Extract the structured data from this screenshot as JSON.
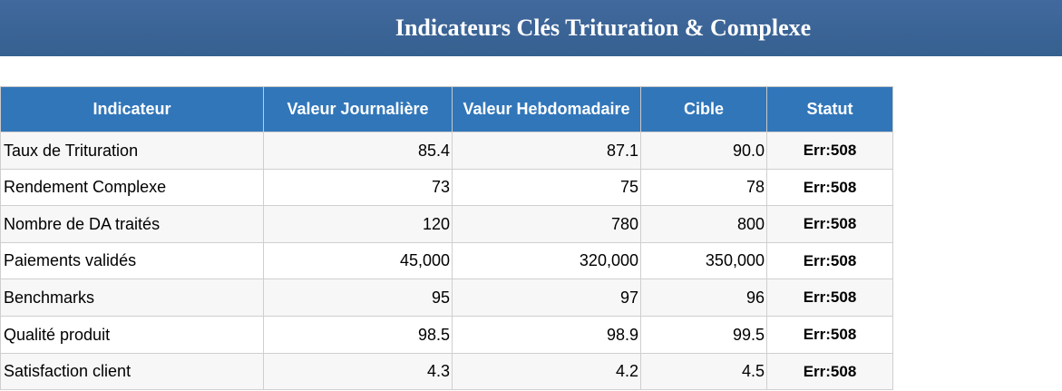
{
  "header": {
    "title": "Indicateurs Clés Trituration & Complexe"
  },
  "table": {
    "columns": [
      "Indicateur",
      "Valeur Journalière",
      "Valeur Hebdomadaire",
      "Cible",
      "Statut"
    ],
    "rows": [
      [
        "Taux de Trituration",
        "85.4",
        "87.1",
        "90.0",
        "Err:508"
      ],
      [
        "Rendement Complexe",
        "73",
        "75",
        "78",
        "Err:508"
      ],
      [
        "Nombre de DA traités",
        "120",
        "780",
        "800",
        "Err:508"
      ],
      [
        "Paiements validés",
        "45,000",
        "320,000",
        "350,000",
        "Err:508"
      ],
      [
        "Benchmarks",
        "95",
        "97",
        "96",
        "Err:508"
      ],
      [
        "Qualité produit",
        "98.5",
        "98.9",
        "99.5",
        "Err:508"
      ],
      [
        "Satisfaction client",
        "4.3",
        "4.2",
        "4.5",
        "Err:508"
      ]
    ]
  }
}
